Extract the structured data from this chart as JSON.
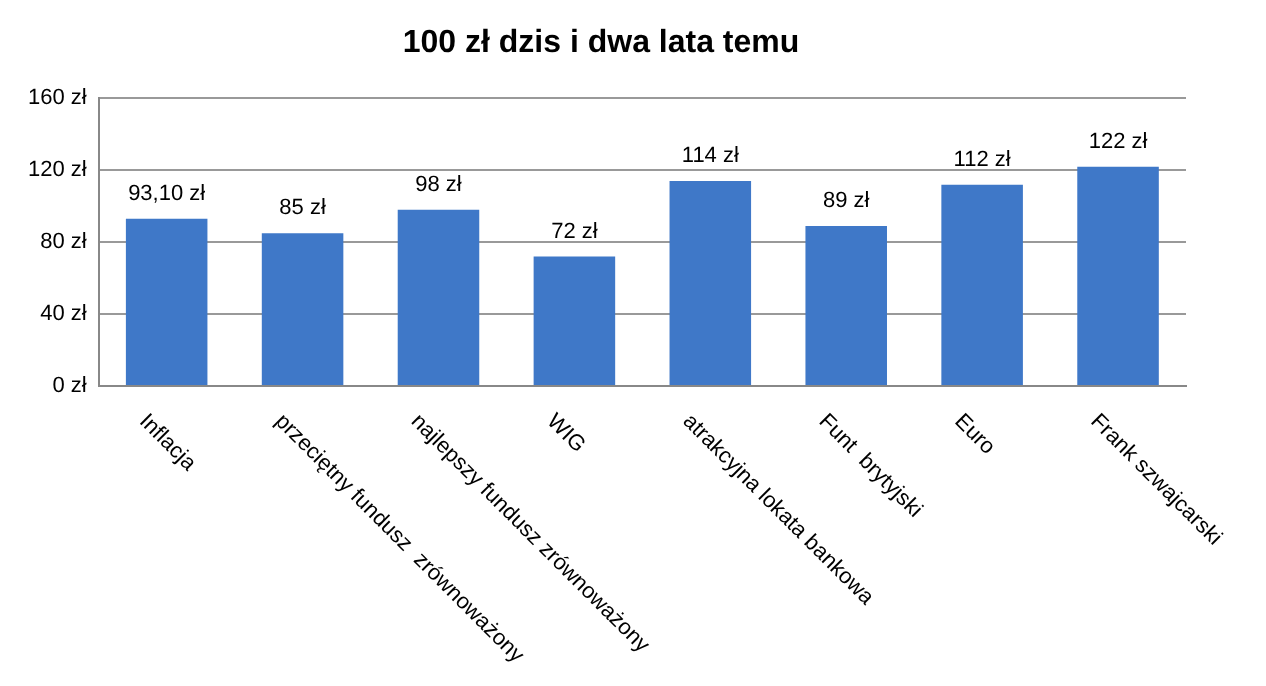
{
  "chart_data": {
    "type": "bar",
    "title": "100 zł dzis i dwa lata temu",
    "categories": [
      "Inflacja",
      "przeciętny fundusz  zrównoważony",
      "najlepszy fundusz zrównoważony",
      "WIG",
      "atrakcyjna lokata bankowa",
      "Funt  brytyjski",
      "Euro",
      "Frank szwajcarski"
    ],
    "values": [
      93.1,
      85,
      98,
      72,
      114,
      89,
      112,
      122
    ],
    "value_labels": [
      "93,10 zł",
      "85 zł",
      "98 zł",
      "72 zł",
      "114 zł",
      "89 zł",
      "112 zł",
      "122 zł"
    ],
    "color": "#3f78c8",
    "ylim": [
      0,
      160
    ],
    "yticks": [
      {
        "value": 0,
        "label": "0 zł"
      },
      {
        "value": 40,
        "label": "40 zł"
      },
      {
        "value": 80,
        "label": "80 zł"
      },
      {
        "value": 120,
        "label": "120 zł"
      },
      {
        "value": 160,
        "label": "160 zł"
      }
    ],
    "grid": "y",
    "legend": false
  }
}
